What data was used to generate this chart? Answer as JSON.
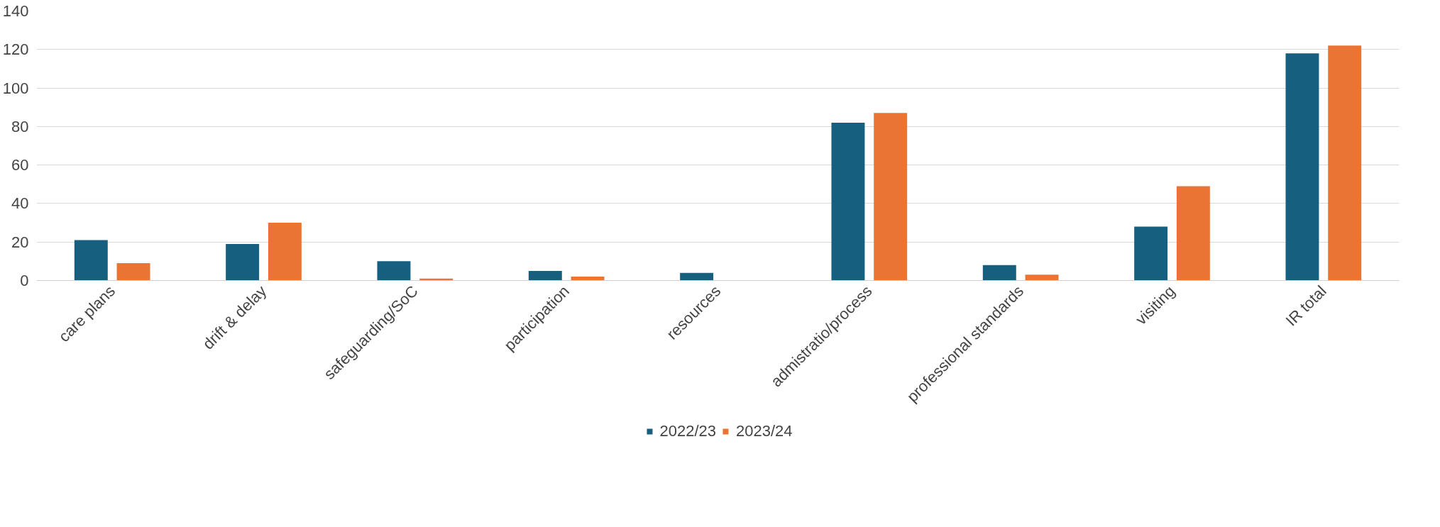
{
  "chart_data": {
    "type": "bar",
    "categories": [
      "care plans",
      "drift & delay",
      "safeguarding/SoC",
      "participation",
      "resources",
      "admistratio/process",
      "professional standards",
      "visiting",
      "IR total"
    ],
    "series": [
      {
        "name": "2022/23",
        "color": "#175f7f",
        "values": [
          21,
          19,
          10,
          5,
          4,
          82,
          8,
          28,
          118
        ]
      },
      {
        "name": "2023/24",
        "color": "#ea7434",
        "values": [
          9,
          30,
          1,
          2,
          0,
          87,
          3,
          49,
          122
        ]
      }
    ],
    "ylim": [
      0,
      140
    ],
    "yticks": [
      0,
      20,
      40,
      60,
      80,
      100,
      120,
      140
    ],
    "grid": "y",
    "legend": "bottom"
  }
}
